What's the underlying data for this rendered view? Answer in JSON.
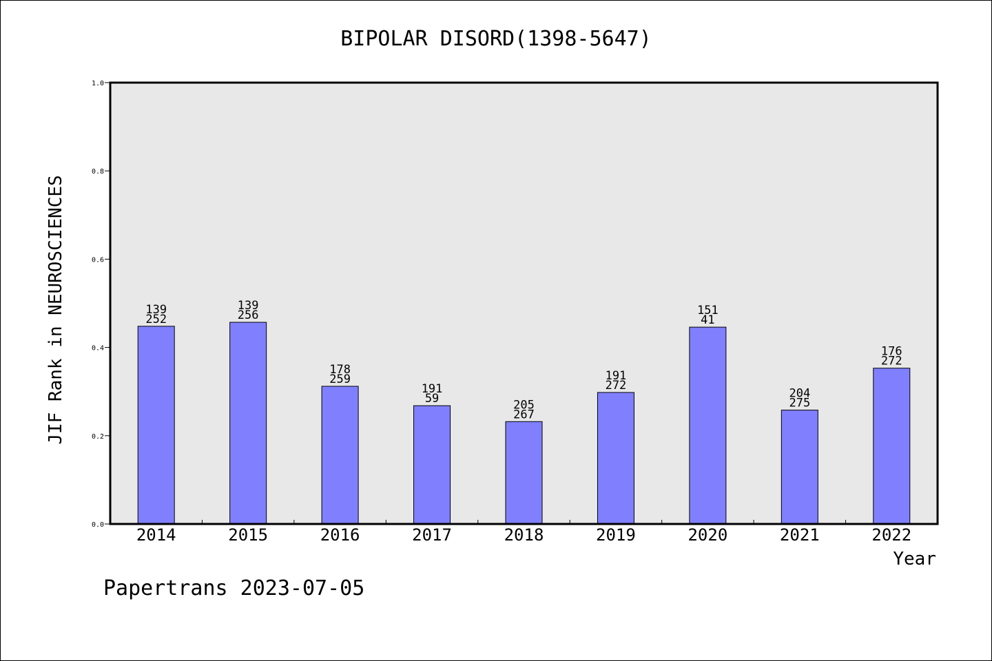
{
  "chart_data": {
    "type": "bar",
    "title": "BIPOLAR DISORD(1398-5647)",
    "xlabel": "Year",
    "ylabel": "JIF Rank in NEUROSCIENCES",
    "ylim": [
      0,
      1.0
    ],
    "yticks": [
      "0.0",
      "0.2",
      "0.4",
      "0.6",
      "0.8",
      "1.0"
    ],
    "grid": false,
    "categories": [
      "2014",
      "2015",
      "2016",
      "2017",
      "2018",
      "2019",
      "2020",
      "2021",
      "2022"
    ],
    "values": [
      0.448,
      0.457,
      0.312,
      0.268,
      0.232,
      0.298,
      0.446,
      0.258,
      0.353
    ],
    "rank_labels": [
      "139",
      "139",
      "178",
      "191",
      "205",
      "191",
      "151",
      "204",
      "176"
    ],
    "total_labels": [
      "252",
      "256",
      "259",
      "59",
      "267",
      "272",
      "41",
      "275",
      "272"
    ],
    "bar_color": "#8080ff",
    "plot_background": "#e8e8e8"
  },
  "footer": "Papertrans 2023-07-05"
}
